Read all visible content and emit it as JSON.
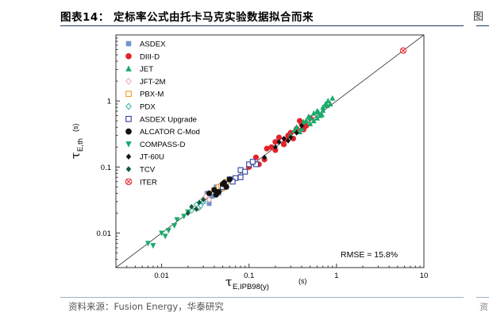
{
  "header": {
    "figure_title": "图表14：  定标率公式由托卡马克实验数据拟合而来",
    "right_clip": "图"
  },
  "footer": {
    "source": "资料来源：Fusion Energy，华泰研究",
    "right_clip": "资"
  },
  "chart_data": {
    "type": "scatter",
    "x_scale": "log",
    "y_scale": "log",
    "xlim": [
      0.003,
      10
    ],
    "ylim": [
      0.003,
      10
    ],
    "x_ticks": [
      "0.01",
      "0.1",
      "1",
      "10"
    ],
    "y_ticks": [
      "0.01",
      "0.1",
      "1"
    ],
    "xlabel_main": "τ",
    "xlabel_sub": "E,IPB98(y)",
    "xlabel_unit": "(s)",
    "ylabel_main": "τ",
    "ylabel_sub": "E,th",
    "ylabel_unit": "(s)",
    "rmse_label": "RMSE = 15.8%",
    "reference_line": "y = x",
    "series": [
      {
        "name": "ASDEX",
        "marker": "square-filled",
        "color": "#6f94c8",
        "points": [
          [
            0.03,
            0.03
          ],
          [
            0.035,
            0.028
          ],
          [
            0.04,
            0.045
          ],
          [
            0.045,
            0.04
          ],
          [
            0.05,
            0.055
          ],
          [
            0.038,
            0.036
          ],
          [
            0.042,
            0.05
          ],
          [
            0.055,
            0.05
          ],
          [
            0.033,
            0.04
          ],
          [
            0.048,
            0.046
          ]
        ]
      },
      {
        "name": "DIII-D",
        "marker": "circle-filled",
        "color": "#e3232b",
        "points": [
          [
            0.1,
            0.1
          ],
          [
            0.12,
            0.14
          ],
          [
            0.15,
            0.13
          ],
          [
            0.18,
            0.2
          ],
          [
            0.2,
            0.24
          ],
          [
            0.25,
            0.22
          ],
          [
            0.3,
            0.33
          ],
          [
            0.35,
            0.38
          ],
          [
            0.4,
            0.45
          ],
          [
            0.45,
            0.42
          ],
          [
            0.22,
            0.28
          ],
          [
            0.28,
            0.3
          ],
          [
            0.5,
            0.55
          ],
          [
            0.32,
            0.27
          ],
          [
            0.16,
            0.19
          ],
          [
            0.13,
            0.11
          ],
          [
            0.38,
            0.5
          ],
          [
            0.26,
            0.26
          ],
          [
            0.42,
            0.37
          ],
          [
            0.2,
            0.18
          ]
        ]
      },
      {
        "name": "JET",
        "marker": "triangle-up",
        "color": "#1aaa6b",
        "points": [
          [
            0.3,
            0.3
          ],
          [
            0.35,
            0.4
          ],
          [
            0.4,
            0.38
          ],
          [
            0.45,
            0.5
          ],
          [
            0.5,
            0.55
          ],
          [
            0.55,
            0.5
          ],
          [
            0.6,
            0.7
          ],
          [
            0.65,
            0.6
          ],
          [
            0.7,
            0.8
          ],
          [
            0.75,
            0.9
          ],
          [
            0.8,
            1.0
          ],
          [
            0.85,
            0.9
          ],
          [
            0.9,
            1.1
          ],
          [
            0.5,
            0.45
          ],
          [
            0.42,
            0.48
          ],
          [
            0.6,
            0.55
          ],
          [
            0.7,
            0.72
          ],
          [
            0.55,
            0.65
          ],
          [
            0.38,
            0.34
          ],
          [
            0.48,
            0.58
          ],
          [
            0.62,
            0.68
          ],
          [
            0.78,
            0.85
          ],
          [
            0.33,
            0.36
          ],
          [
            0.68,
            0.62
          ]
        ]
      },
      {
        "name": "JFT-2M",
        "marker": "diamond-open",
        "color": "#e8a8b8",
        "points": [
          [
            0.025,
            0.025
          ],
          [
            0.03,
            0.033
          ],
          [
            0.028,
            0.03
          ],
          [
            0.035,
            0.032
          ],
          [
            0.032,
            0.036
          ],
          [
            0.027,
            0.024
          ]
        ]
      },
      {
        "name": "PBX-M",
        "marker": "square-open",
        "color": "#f29a24",
        "points": [
          [
            0.04,
            0.045
          ],
          [
            0.045,
            0.05
          ],
          [
            0.05,
            0.048
          ],
          [
            0.055,
            0.06
          ],
          [
            0.048,
            0.052
          ]
        ]
      },
      {
        "name": "PDX",
        "marker": "diamond-open",
        "color": "#35b0a3",
        "points": [
          [
            0.022,
            0.022
          ],
          [
            0.025,
            0.027
          ],
          [
            0.028,
            0.026
          ],
          [
            0.03,
            0.03
          ],
          [
            0.026,
            0.024
          ]
        ]
      },
      {
        "name": "ASDEX Upgrade",
        "marker": "square-open",
        "color": "#2f3f9c",
        "points": [
          [
            0.05,
            0.05
          ],
          [
            0.06,
            0.065
          ],
          [
            0.07,
            0.068
          ],
          [
            0.08,
            0.09
          ],
          [
            0.09,
            0.085
          ],
          [
            0.1,
            0.11
          ],
          [
            0.12,
            0.11
          ],
          [
            0.08,
            0.07
          ],
          [
            0.065,
            0.06
          ],
          [
            0.11,
            0.12
          ]
        ]
      },
      {
        "name": "ALCATOR C-Mod",
        "marker": "circle-filled",
        "color": "#111111",
        "points": [
          [
            0.035,
            0.04
          ],
          [
            0.04,
            0.045
          ],
          [
            0.045,
            0.042
          ],
          [
            0.05,
            0.055
          ],
          [
            0.055,
            0.05
          ],
          [
            0.06,
            0.065
          ],
          [
            0.042,
            0.038
          ],
          [
            0.052,
            0.058
          ]
        ]
      },
      {
        "name": "COMPASS-D",
        "marker": "triangle-down",
        "color": "#1aaa6b",
        "points": [
          [
            0.007,
            0.007
          ],
          [
            0.008,
            0.0065
          ],
          [
            0.01,
            0.01
          ],
          [
            0.012,
            0.011
          ],
          [
            0.015,
            0.016
          ],
          [
            0.018,
            0.018
          ],
          [
            0.02,
            0.021
          ],
          [
            0.011,
            0.009
          ],
          [
            0.014,
            0.013
          ]
        ]
      },
      {
        "name": "JT-60U",
        "marker": "diamond-filled",
        "color": "#111111",
        "points": [
          [
            0.15,
            0.14
          ],
          [
            0.2,
            0.2
          ],
          [
            0.25,
            0.27
          ],
          [
            0.3,
            0.28
          ],
          [
            0.35,
            0.33
          ],
          [
            0.4,
            0.42
          ],
          [
            0.22,
            0.24
          ],
          [
            0.28,
            0.25
          ]
        ]
      },
      {
        "name": "TCV",
        "marker": "diamond-filled",
        "color": "#0f5a3f",
        "points": [
          [
            0.02,
            0.02
          ],
          [
            0.025,
            0.023
          ],
          [
            0.03,
            0.032
          ],
          [
            0.022,
            0.025
          ],
          [
            0.027,
            0.029
          ]
        ]
      },
      {
        "name": "ITER",
        "marker": "circle-x",
        "color": "#e3232b",
        "points": [
          [
            5.8,
            5.8
          ]
        ]
      }
    ]
  }
}
